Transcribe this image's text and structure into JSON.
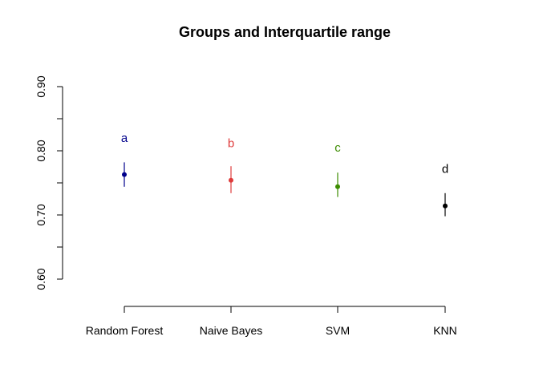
{
  "chart_data": {
    "type": "scatter",
    "title": "Groups and Interquartile range",
    "xlabel": "",
    "ylabel": "",
    "categories": [
      "Random Forest",
      "Naive Bayes",
      "SVM",
      "KNN"
    ],
    "ylim": [
      0.56,
      0.9
    ],
    "yticks": [
      "0.60",
      "0.70",
      "0.80",
      "0.90"
    ],
    "grid": false,
    "points": [
      {
        "category": "Random Forest",
        "median": 0.763,
        "q1": 0.744,
        "q3": 0.782,
        "group": "a",
        "label_y": 0.82,
        "color": "#00008B"
      },
      {
        "category": "Naive Bayes",
        "median": 0.754,
        "q1": 0.734,
        "q3": 0.776,
        "group": "b",
        "label_y": 0.812,
        "color": "#DF3B3B"
      },
      {
        "category": "SVM",
        "median": 0.744,
        "q1": 0.728,
        "q3": 0.766,
        "group": "c",
        "label_y": 0.805,
        "color": "#3C8C00"
      },
      {
        "category": "KNN",
        "median": 0.714,
        "q1": 0.698,
        "q3": 0.734,
        "group": "d",
        "label_y": 0.772,
        "color": "#000000"
      }
    ]
  }
}
